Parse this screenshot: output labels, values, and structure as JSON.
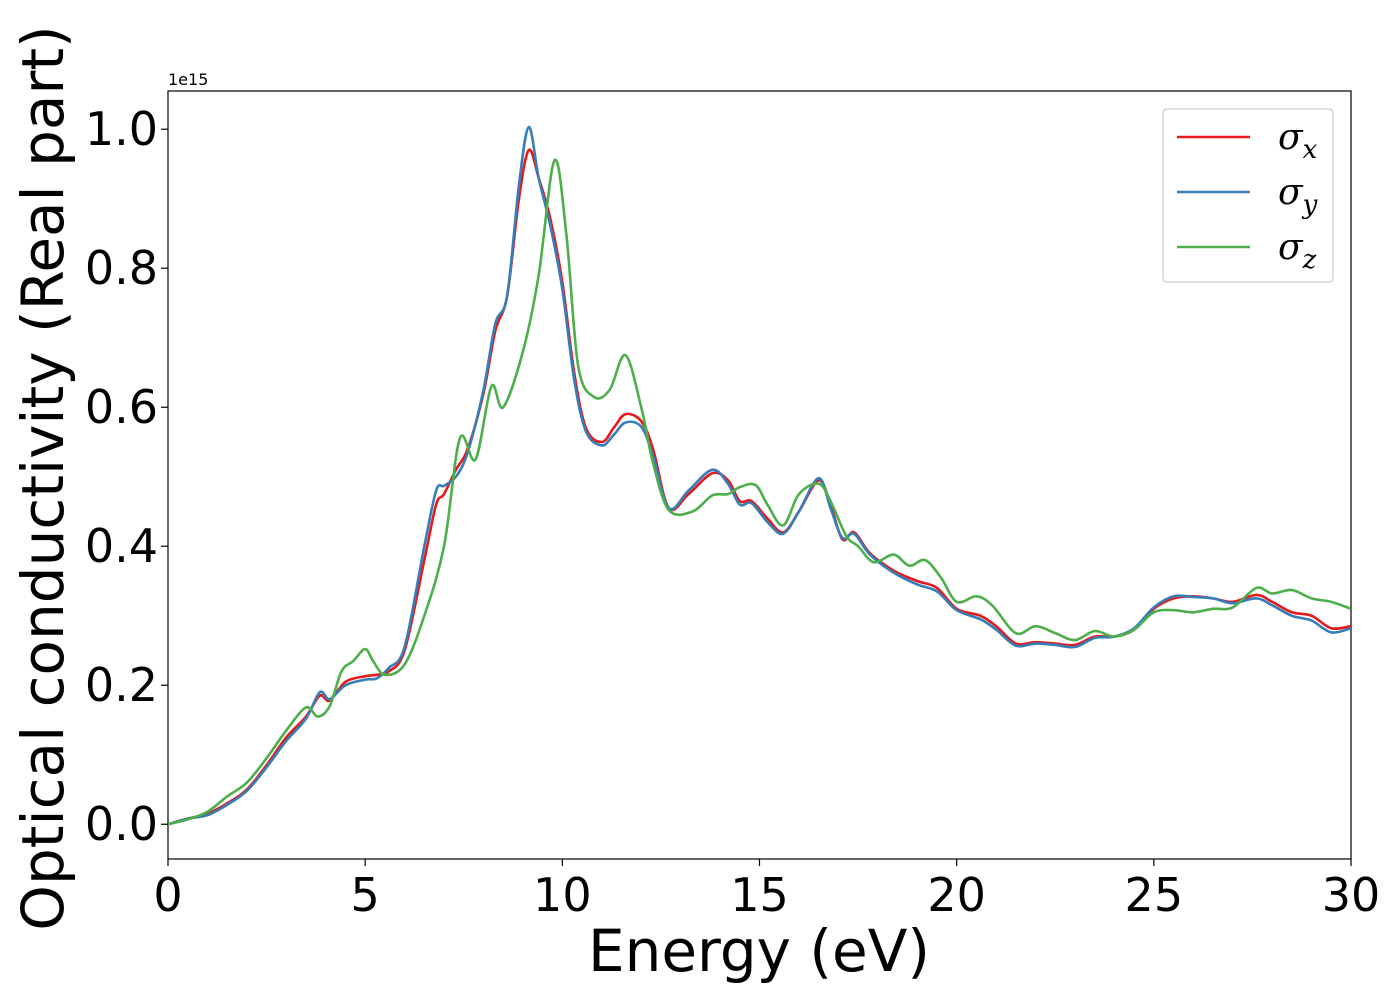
{
  "chart_data": {
    "type": "line",
    "title": "",
    "xlabel": "Energy (eV)",
    "ylabel": "Optical conductivity (Real part)",
    "y_offset_text": "1e15",
    "xlim": [
      0,
      30
    ],
    "ylim": [
      -0.05,
      1.055
    ],
    "xticks": [
      0,
      5,
      10,
      15,
      20,
      25,
      30
    ],
    "xtick_labels": [
      "0",
      "5",
      "10",
      "15",
      "20",
      "25",
      "30"
    ],
    "yticks": [
      0.0,
      0.2,
      0.4,
      0.6,
      0.8,
      1.0
    ],
    "ytick_labels": [
      "0.0",
      "0.2",
      "0.4",
      "0.6",
      "0.8",
      "1.0"
    ],
    "grid": false,
    "legend_position": "top-right",
    "series": [
      {
        "name": "σ_x",
        "legend_base": "σ",
        "legend_sub": "x",
        "color": "#e41a1c",
        "points": [
          [
            0,
            0
          ],
          [
            0.5,
            0.008
          ],
          [
            1,
            0.015
          ],
          [
            1.5,
            0.03
          ],
          [
            2,
            0.05
          ],
          [
            2.5,
            0.085
          ],
          [
            3,
            0.125
          ],
          [
            3.5,
            0.155
          ],
          [
            3.85,
            0.185
          ],
          [
            4.1,
            0.178
          ],
          [
            4.5,
            0.205
          ],
          [
            5,
            0.213
          ],
          [
            5.3,
            0.215
          ],
          [
            5.6,
            0.22
          ],
          [
            6,
            0.25
          ],
          [
            6.5,
            0.38
          ],
          [
            6.8,
            0.46
          ],
          [
            7,
            0.475
          ],
          [
            7.3,
            0.51
          ],
          [
            7.6,
            0.54
          ],
          [
            8,
            0.62
          ],
          [
            8.3,
            0.71
          ],
          [
            8.6,
            0.76
          ],
          [
            8.9,
            0.9
          ],
          [
            9.15,
            0.97
          ],
          [
            9.4,
            0.93
          ],
          [
            9.7,
            0.87
          ],
          [
            10,
            0.78
          ],
          [
            10.3,
            0.65
          ],
          [
            10.6,
            0.57
          ],
          [
            11,
            0.55
          ],
          [
            11.3,
            0.57
          ],
          [
            11.6,
            0.59
          ],
          [
            12,
            0.58
          ],
          [
            12.3,
            0.54
          ],
          [
            12.7,
            0.455
          ],
          [
            13.2,
            0.475
          ],
          [
            13.8,
            0.505
          ],
          [
            14.2,
            0.495
          ],
          [
            14.5,
            0.465
          ],
          [
            14.8,
            0.465
          ],
          [
            15.2,
            0.44
          ],
          [
            15.6,
            0.42
          ],
          [
            16,
            0.45
          ],
          [
            16.5,
            0.495
          ],
          [
            16.8,
            0.46
          ],
          [
            17.1,
            0.41
          ],
          [
            17.4,
            0.42
          ],
          [
            17.8,
            0.39
          ],
          [
            18.4,
            0.365
          ],
          [
            19,
            0.35
          ],
          [
            19.5,
            0.34
          ],
          [
            20,
            0.31
          ],
          [
            20.6,
            0.3
          ],
          [
            21,
            0.285
          ],
          [
            21.5,
            0.26
          ],
          [
            22,
            0.262
          ],
          [
            22.5,
            0.26
          ],
          [
            23,
            0.258
          ],
          [
            23.5,
            0.27
          ],
          [
            24,
            0.27
          ],
          [
            24.5,
            0.28
          ],
          [
            25,
            0.31
          ],
          [
            25.5,
            0.325
          ],
          [
            26,
            0.328
          ],
          [
            26.5,
            0.325
          ],
          [
            27,
            0.32
          ],
          [
            27.6,
            0.33
          ],
          [
            28,
            0.32
          ],
          [
            28.5,
            0.305
          ],
          [
            29,
            0.3
          ],
          [
            29.5,
            0.282
          ],
          [
            30,
            0.285
          ]
        ]
      },
      {
        "name": "σ_y",
        "legend_base": "σ",
        "legend_sub": "y",
        "color": "#377eb8",
        "points": [
          [
            0,
            0
          ],
          [
            0.5,
            0.008
          ],
          [
            1,
            0.013
          ],
          [
            1.5,
            0.028
          ],
          [
            2,
            0.048
          ],
          [
            2.5,
            0.082
          ],
          [
            3,
            0.12
          ],
          [
            3.5,
            0.152
          ],
          [
            3.85,
            0.19
          ],
          [
            4.1,
            0.18
          ],
          [
            4.5,
            0.2
          ],
          [
            5,
            0.208
          ],
          [
            5.3,
            0.21
          ],
          [
            5.6,
            0.225
          ],
          [
            6,
            0.255
          ],
          [
            6.5,
            0.4
          ],
          [
            6.8,
            0.48
          ],
          [
            7,
            0.487
          ],
          [
            7.3,
            0.5
          ],
          [
            7.6,
            0.535
          ],
          [
            8,
            0.625
          ],
          [
            8.3,
            0.72
          ],
          [
            8.6,
            0.76
          ],
          [
            8.9,
            0.92
          ],
          [
            9.15,
            1.003
          ],
          [
            9.4,
            0.93
          ],
          [
            9.7,
            0.86
          ],
          [
            10,
            0.77
          ],
          [
            10.3,
            0.64
          ],
          [
            10.6,
            0.565
          ],
          [
            11,
            0.545
          ],
          [
            11.3,
            0.56
          ],
          [
            11.6,
            0.578
          ],
          [
            12,
            0.572
          ],
          [
            12.3,
            0.53
          ],
          [
            12.7,
            0.455
          ],
          [
            13.2,
            0.48
          ],
          [
            13.8,
            0.51
          ],
          [
            14.2,
            0.49
          ],
          [
            14.5,
            0.46
          ],
          [
            14.8,
            0.462
          ],
          [
            15.2,
            0.435
          ],
          [
            15.6,
            0.418
          ],
          [
            16,
            0.45
          ],
          [
            16.5,
            0.498
          ],
          [
            16.8,
            0.455
          ],
          [
            17.1,
            0.412
          ],
          [
            17.4,
            0.418
          ],
          [
            17.8,
            0.388
          ],
          [
            18.4,
            0.362
          ],
          [
            19,
            0.345
          ],
          [
            19.5,
            0.335
          ],
          [
            20,
            0.308
          ],
          [
            20.6,
            0.295
          ],
          [
            21,
            0.28
          ],
          [
            21.5,
            0.257
          ],
          [
            22,
            0.26
          ],
          [
            22.5,
            0.258
          ],
          [
            23,
            0.255
          ],
          [
            23.5,
            0.268
          ],
          [
            24,
            0.27
          ],
          [
            24.5,
            0.282
          ],
          [
            25,
            0.312
          ],
          [
            25.5,
            0.328
          ],
          [
            26,
            0.327
          ],
          [
            26.5,
            0.325
          ],
          [
            27,
            0.318
          ],
          [
            27.6,
            0.325
          ],
          [
            28,
            0.315
          ],
          [
            28.5,
            0.3
          ],
          [
            29,
            0.293
          ],
          [
            29.5,
            0.276
          ],
          [
            30,
            0.282
          ]
        ]
      },
      {
        "name": "σ_z",
        "legend_base": "σ",
        "legend_sub": "z",
        "color": "#4daf4a",
        "points": [
          [
            0,
            0
          ],
          [
            0.5,
            0.007
          ],
          [
            1,
            0.018
          ],
          [
            1.5,
            0.04
          ],
          [
            2,
            0.06
          ],
          [
            2.5,
            0.095
          ],
          [
            3,
            0.135
          ],
          [
            3.5,
            0.168
          ],
          [
            3.8,
            0.155
          ],
          [
            4.1,
            0.17
          ],
          [
            4.4,
            0.22
          ],
          [
            4.7,
            0.235
          ],
          [
            5,
            0.252
          ],
          [
            5.2,
            0.235
          ],
          [
            5.5,
            0.215
          ],
          [
            6,
            0.23
          ],
          [
            6.5,
            0.3
          ],
          [
            7,
            0.4
          ],
          [
            7.4,
            0.555
          ],
          [
            7.8,
            0.525
          ],
          [
            8.2,
            0.63
          ],
          [
            8.5,
            0.6
          ],
          [
            9,
            0.68
          ],
          [
            9.4,
            0.79
          ],
          [
            9.8,
            0.955
          ],
          [
            10.1,
            0.85
          ],
          [
            10.4,
            0.66
          ],
          [
            10.8,
            0.615
          ],
          [
            11.2,
            0.625
          ],
          [
            11.6,
            0.675
          ],
          [
            12,
            0.6
          ],
          [
            12.3,
            0.52
          ],
          [
            12.7,
            0.452
          ],
          [
            13.3,
            0.45
          ],
          [
            13.8,
            0.473
          ],
          [
            14.2,
            0.475
          ],
          [
            14.5,
            0.485
          ],
          [
            14.9,
            0.488
          ],
          [
            15.2,
            0.46
          ],
          [
            15.6,
            0.43
          ],
          [
            16,
            0.475
          ],
          [
            16.5,
            0.49
          ],
          [
            16.8,
            0.465
          ],
          [
            17.2,
            0.415
          ],
          [
            17.5,
            0.4
          ],
          [
            17.9,
            0.377
          ],
          [
            18.4,
            0.388
          ],
          [
            18.8,
            0.372
          ],
          [
            19.2,
            0.38
          ],
          [
            19.6,
            0.355
          ],
          [
            20,
            0.32
          ],
          [
            20.5,
            0.328
          ],
          [
            20.9,
            0.315
          ],
          [
            21.5,
            0.275
          ],
          [
            22,
            0.285
          ],
          [
            22.5,
            0.275
          ],
          [
            23,
            0.265
          ],
          [
            23.5,
            0.278
          ],
          [
            24,
            0.27
          ],
          [
            24.5,
            0.28
          ],
          [
            25,
            0.305
          ],
          [
            25.5,
            0.308
          ],
          [
            26,
            0.305
          ],
          [
            26.5,
            0.31
          ],
          [
            27,
            0.312
          ],
          [
            27.6,
            0.34
          ],
          [
            28,
            0.332
          ],
          [
            28.5,
            0.337
          ],
          [
            29,
            0.325
          ],
          [
            29.5,
            0.32
          ],
          [
            30,
            0.31
          ]
        ]
      }
    ]
  }
}
